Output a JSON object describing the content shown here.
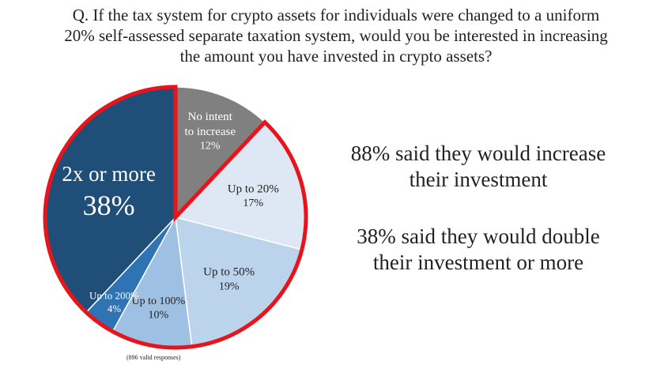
{
  "question": {
    "lines": [
      "Q. If the tax system for crypto assets for individuals were changed to a uniform",
      "20% self-assessed separate taxation system, would you be interested in increasing",
      "the amount you have invested in crypto assets?"
    ]
  },
  "chart_data": {
    "type": "pie",
    "slices": [
      {
        "label": [
          "No intent",
          "to increase"
        ],
        "pct_text": "12%",
        "value": 12,
        "color": "#808080"
      },
      {
        "label": [
          "Up to 20%"
        ],
        "pct_text": "17%",
        "value": 17,
        "color": "#dde8f4"
      },
      {
        "label": [
          "Up to 50%"
        ],
        "pct_text": "19%",
        "value": 19,
        "color": "#bcd3ec"
      },
      {
        "label": [
          "Up to 100%"
        ],
        "pct_text": "10%",
        "value": 10,
        "color": "#9ec0e2"
      },
      {
        "label": [
          "Up to 200%"
        ],
        "pct_text": "4%",
        "value": 4,
        "color": "#2e74b5"
      },
      {
        "label": [
          "2x or more"
        ],
        "pct_text": "38%",
        "value": 38,
        "color": "#1f4e79"
      }
    ],
    "highlight_color": "#e8141b",
    "note": "(896 valid responses)"
  },
  "takeaways": [
    {
      "lines": [
        "88% said they would increase",
        "their investment"
      ]
    },
    {
      "lines": [
        "38% said they would double",
        "their investment or more"
      ]
    }
  ]
}
